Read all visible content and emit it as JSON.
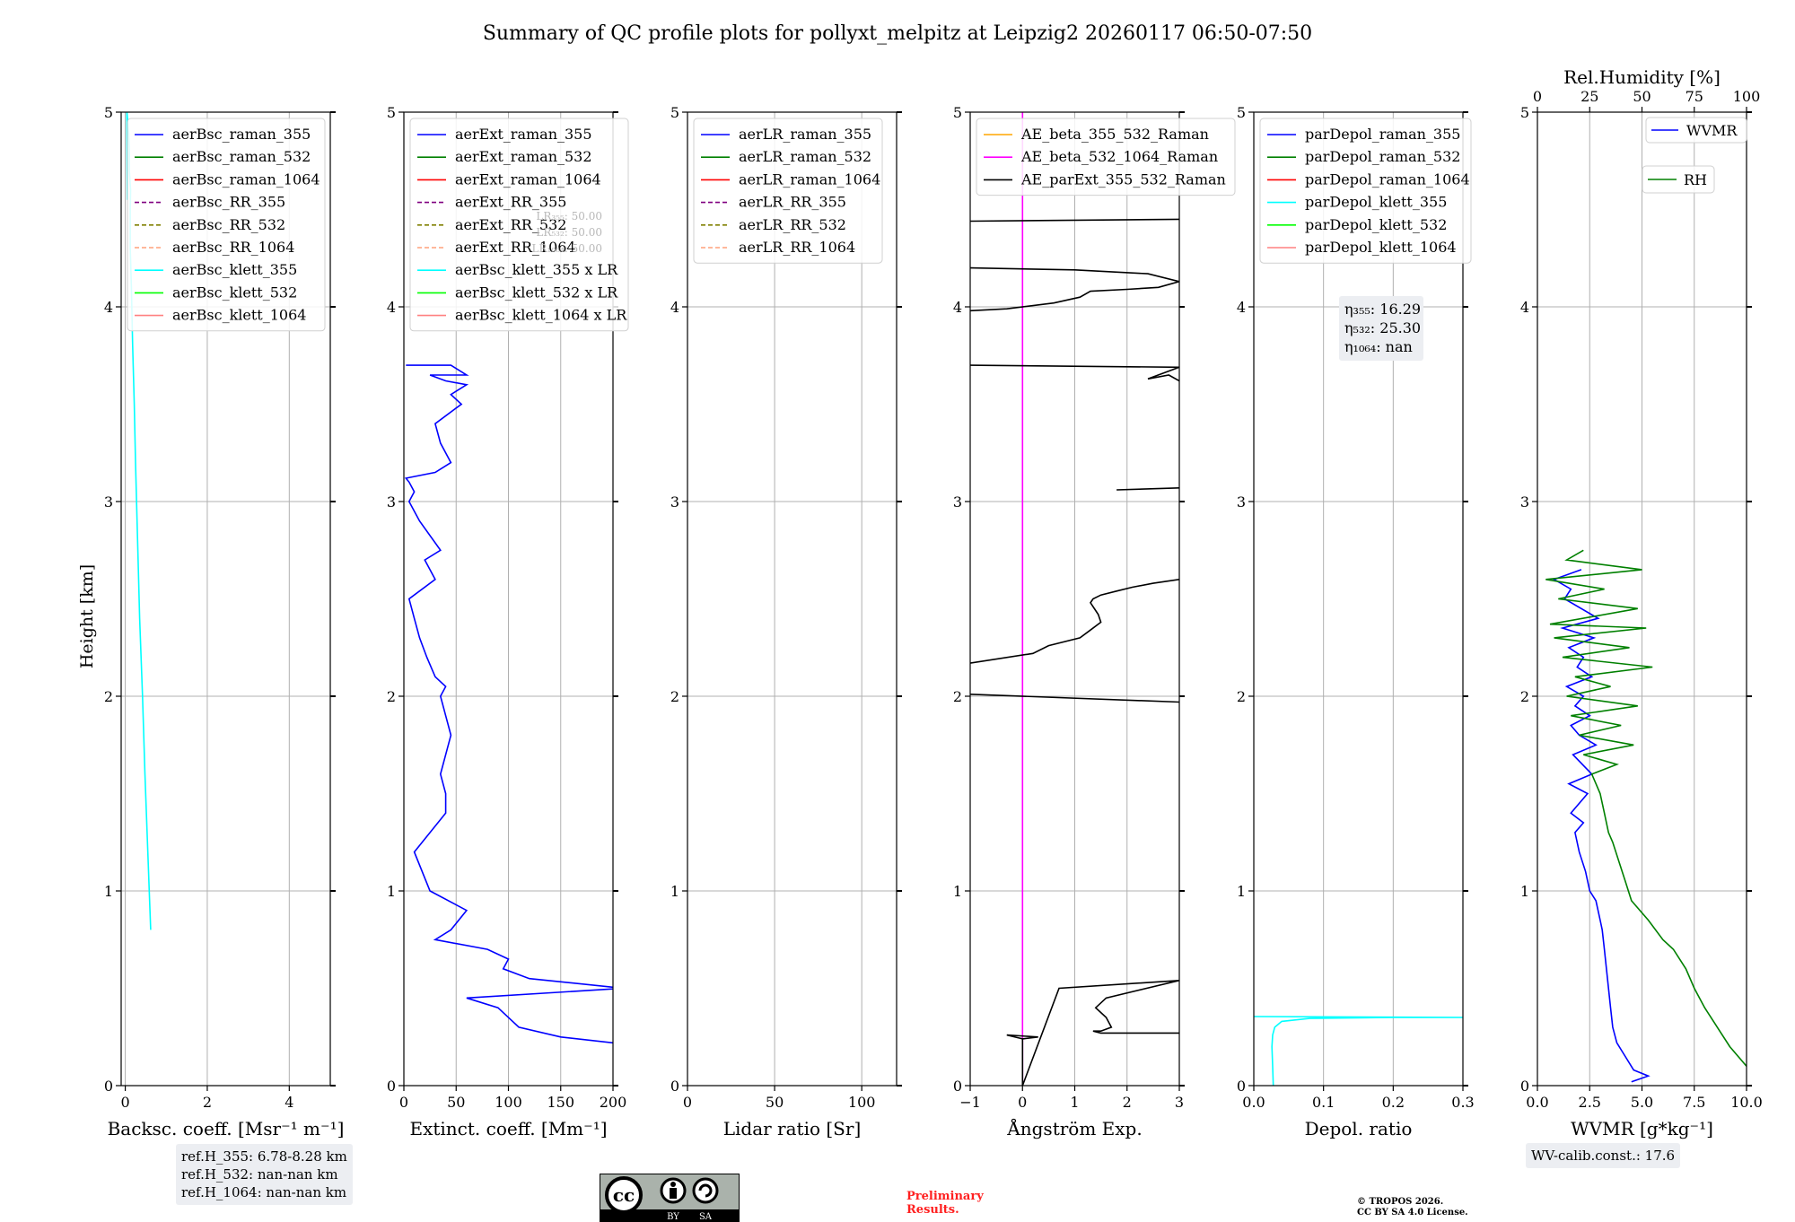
{
  "title": "Summary of QC profile plots for pollyxt_melpitz at Leipzig2 20260117 06:50-07:50",
  "ylabel": "Height [km]",
  "colors": {
    "c355": "#0000ff",
    "c532": "#008000",
    "c1064": "#ff0000",
    "rr355": "#800080",
    "rr532": "#808000",
    "rr1064": "#ffa07a",
    "k355": "#00ffff",
    "k532": "#00ff00",
    "k1064": "#ff8080",
    "ae1": "#ffa500",
    "ae2": "#ff00ff",
    "ae3": "#000000"
  },
  "chart_data": [
    {
      "id": "bsc",
      "type": "line",
      "xlabel": "Backsc. coeff. [Msr⁻¹ m⁻¹]",
      "xlim": [
        -0.1,
        5
      ],
      "ylim": [
        0,
        5
      ],
      "xticks": [
        "0",
        "2",
        "4"
      ],
      "xtick_values": [
        0,
        2,
        4
      ],
      "yticks": [
        "0",
        "1",
        "2",
        "3",
        "4",
        "5"
      ],
      "legend": [
        {
          "label": "aerBsc_raman_355",
          "color": "c355",
          "dash": false
        },
        {
          "label": "aerBsc_raman_532",
          "color": "c532",
          "dash": false
        },
        {
          "label": "aerBsc_raman_1064",
          "color": "c1064",
          "dash": false
        },
        {
          "label": "aerBsc_RR_355",
          "color": "rr355",
          "dash": true
        },
        {
          "label": "aerBsc_RR_532",
          "color": "rr532",
          "dash": true
        },
        {
          "label": "aerBsc_RR_1064",
          "color": "rr1064",
          "dash": true
        },
        {
          "label": "aerBsc_klett_355",
          "color": "k355",
          "dash": false
        },
        {
          "label": "aerBsc_klett_532",
          "color": "k532",
          "dash": false
        },
        {
          "label": "aerBsc_klett_1064",
          "color": "k1064",
          "dash": false
        }
      ],
      "series": [
        {
          "name": "aerBsc_klett_355",
          "color": "k355",
          "x": [
            0.62,
            0.55,
            0.48,
            0.42,
            0.35,
            0.3,
            0.25,
            0.22,
            0.18,
            0.15,
            0.12,
            0.12,
            0.13,
            0.1,
            0.1,
            0.08,
            0.06,
            0.04,
            0.05
          ],
          "y": [
            0.8,
            1.2,
            1.6,
            2.0,
            2.4,
            2.8,
            3.2,
            3.5,
            3.8,
            4.1,
            4.3,
            4.5,
            4.6,
            4.7,
            4.8,
            4.9,
            4.95,
            5.0,
            4.55
          ]
        }
      ]
    },
    {
      "id": "ext",
      "type": "line",
      "xlabel": "Extinct. coeff. [Mm⁻¹]",
      "xlim": [
        0,
        200
      ],
      "ylim": [
        0,
        5
      ],
      "xticks": [
        "0",
        "50",
        "100",
        "150",
        "200"
      ],
      "xtick_values": [
        0,
        50,
        100,
        150,
        200
      ],
      "yticks": [
        "0",
        "1",
        "2",
        "3",
        "4",
        "5"
      ],
      "legend": [
        {
          "label": "aerExt_raman_355",
          "color": "c355",
          "dash": false
        },
        {
          "label": "aerExt_raman_532",
          "color": "c532",
          "dash": false
        },
        {
          "label": "aerExt_raman_1064",
          "color": "c1064",
          "dash": false
        },
        {
          "label": "aerExt_RR_355",
          "color": "rr355",
          "dash": true
        },
        {
          "label": "aerExt_RR_532",
          "color": "rr532",
          "dash": true
        },
        {
          "label": "aerExt_RR_1064",
          "color": "rr1064",
          "dash": true
        },
        {
          "label": "aerBsc_klett_355 x LR",
          "color": "k355",
          "dash": false
        },
        {
          "label": "aerBsc_klett_532 x LR",
          "color": "k532",
          "dash": false
        },
        {
          "label": "aerBsc_klett_1064 x LR",
          "color": "k1064",
          "dash": false
        }
      ],
      "annotations": [
        "LR₃₅₅: 50.00",
        "LR₅₃₂: 50.00",
        "LR₁₀₆₄: 50.00"
      ],
      "series": [
        {
          "name": "aerExt_raman_355",
          "color": "c355",
          "x": [
            200,
            150,
            110,
            90,
            60,
            210,
            120,
            95,
            100,
            80,
            30,
            45,
            60,
            25,
            10,
            40,
            40,
            35,
            45,
            40,
            35,
            40,
            30,
            22,
            15,
            10,
            5,
            30,
            20,
            35,
            15,
            5,
            10,
            5,
            2,
            30,
            45,
            35,
            30,
            55,
            45,
            60,
            40,
            25,
            60,
            45,
            2
          ],
          "y": [
            0.22,
            0.25,
            0.3,
            0.4,
            0.45,
            0.5,
            0.55,
            0.6,
            0.65,
            0.7,
            0.75,
            0.8,
            0.9,
            1.0,
            1.2,
            1.4,
            1.5,
            1.6,
            1.8,
            1.9,
            2.0,
            2.05,
            2.1,
            2.2,
            2.3,
            2.4,
            2.5,
            2.6,
            2.7,
            2.75,
            2.9,
            3.0,
            3.05,
            3.1,
            3.12,
            3.15,
            3.2,
            3.3,
            3.4,
            3.5,
            3.55,
            3.6,
            3.62,
            3.65,
            3.65,
            3.7,
            3.7
          ]
        }
      ]
    },
    {
      "id": "lr",
      "type": "line",
      "xlabel": "Lidar ratio [Sr]",
      "xlim": [
        0,
        120
      ],
      "ylim": [
        0,
        5
      ],
      "xticks": [
        "0",
        "50",
        "100"
      ],
      "xtick_values": [
        0,
        50,
        100
      ],
      "yticks": [
        "0",
        "1",
        "2",
        "3",
        "4",
        "5"
      ],
      "legend": [
        {
          "label": "aerLR_raman_355",
          "color": "c355",
          "dash": false
        },
        {
          "label": "aerLR_raman_532",
          "color": "c532",
          "dash": false
        },
        {
          "label": "aerLR_raman_1064",
          "color": "c1064",
          "dash": false
        },
        {
          "label": "aerLR_RR_355",
          "color": "rr355",
          "dash": true
        },
        {
          "label": "aerLR_RR_532",
          "color": "rr532",
          "dash": true
        },
        {
          "label": "aerLR_RR_1064",
          "color": "rr1064",
          "dash": true
        }
      ],
      "series": []
    },
    {
      "id": "ae",
      "type": "line",
      "xlabel": "Ångström Exp.",
      "xlim": [
        -1,
        3
      ],
      "ylim": [
        0,
        5
      ],
      "xticks": [
        "−1",
        "0",
        "1",
        "2",
        "3"
      ],
      "xtick_values": [
        -1,
        0,
        1,
        2,
        3
      ],
      "yticks": [
        "0",
        "1",
        "2",
        "3",
        "4",
        "5"
      ],
      "legend": [
        {
          "label": "AE_beta_355_532_Raman",
          "color": "ae1",
          "dash": false
        },
        {
          "label": "AE_beta_532_1064_Raman",
          "color": "ae2",
          "dash": false
        },
        {
          "label": "AE_parExt_355_532_Raman",
          "color": "ae3",
          "dash": false
        }
      ],
      "series": [
        {
          "name": "AE_beta_532_1064_Raman",
          "color": "ae2",
          "x": [
            0,
            0
          ],
          "y": [
            0,
            5
          ]
        },
        {
          "name": "AE_parExt_355_532_Raman",
          "color": "ae3",
          "x": [
            0,
            0,
            -0.3,
            0.3,
            0,
            0,
            0.7,
            3.0,
            1.6,
            1.4,
            1.6,
            1.7,
            1.5,
            1.35,
            1.5,
            3.0
          ],
          "y": [
            0,
            0.24,
            0.26,
            0.25,
            0.24,
            0,
            0.5,
            0.54,
            0.45,
            0.4,
            0.35,
            0.3,
            0.28,
            0.28,
            0.27,
            0.27
          ]
        },
        {
          "name": "AE_parExt_355_532_Raman",
          "color": "ae3",
          "x": [
            -1,
            0.2,
            0.5,
            1.1,
            1.3,
            1.5,
            1.45,
            1.4,
            1.3,
            1.35,
            1.5,
            1.8,
            2.1,
            2.5,
            3.0
          ],
          "y": [
            2.17,
            2.22,
            2.26,
            2.3,
            2.34,
            2.38,
            2.42,
            2.44,
            2.48,
            2.5,
            2.52,
            2.54,
            2.56,
            2.58,
            2.6
          ]
        },
        {
          "name": "AE_parExt_355_532_Raman",
          "color": "ae3",
          "x": [
            -1,
            3
          ],
          "y": [
            2.01,
            1.97
          ]
        },
        {
          "name": "AE_parExt_355_532_Raman",
          "color": "ae3",
          "x": [
            1.8,
            3
          ],
          "y": [
            3.06,
            3.07
          ]
        },
        {
          "name": "AE_parExt_355_532_Raman",
          "color": "ae3",
          "x": [
            -1,
            3,
            2.4,
            2.8,
            3.0
          ],
          "y": [
            3.7,
            3.69,
            3.63,
            3.65,
            3.62
          ]
        },
        {
          "name": "AE_parExt_355_532_Raman",
          "color": "ae3",
          "x": [
            -1,
            -0.3,
            0.6,
            1.1,
            1.3,
            2.0,
            2.6,
            3.0,
            2.4,
            1.0,
            -1
          ],
          "y": [
            3.98,
            3.99,
            4.02,
            4.05,
            4.08,
            4.09,
            4.1,
            4.13,
            4.17,
            4.19,
            4.2
          ]
        },
        {
          "name": "AE_parExt_355_532_Raman",
          "color": "ae3",
          "x": [
            -1,
            3
          ],
          "y": [
            4.44,
            4.45
          ]
        }
      ]
    },
    {
      "id": "depol",
      "type": "line",
      "xlabel": "Depol. ratio",
      "xlim": [
        0,
        0.3
      ],
      "ylim": [
        0,
        5
      ],
      "xticks": [
        "0.0",
        "0.1",
        "0.2",
        "0.3"
      ],
      "xtick_values": [
        0,
        0.1,
        0.2,
        0.3
      ],
      "yticks": [
        "0",
        "1",
        "2",
        "3",
        "4",
        "5"
      ],
      "legend": [
        {
          "label": "parDepol_raman_355",
          "color": "c355",
          "dash": false
        },
        {
          "label": "parDepol_raman_532",
          "color": "c532",
          "dash": false
        },
        {
          "label": "parDepol_raman_1064",
          "color": "c1064",
          "dash": false
        },
        {
          "label": "parDepol_klett_355",
          "color": "k355",
          "dash": false
        },
        {
          "label": "parDepol_klett_532",
          "color": "k532",
          "dash": false
        },
        {
          "label": "parDepol_klett_1064",
          "color": "k1064",
          "dash": false
        }
      ],
      "eta": [
        "η₃₅₅: 16.29",
        "η₅₃₂: 25.30",
        "η₁₀₆₄: nan"
      ],
      "series": [
        {
          "name": "parDepol_klett_355",
          "color": "k355",
          "x": [
            0.028,
            0.027,
            0.026,
            0.027,
            0.03,
            0.04,
            0.08,
            0.2,
            0.3,
            0.0
          ],
          "y": [
            0.0,
            0.1,
            0.2,
            0.26,
            0.3,
            0.33,
            0.345,
            0.35,
            0.35,
            0.355
          ]
        }
      ]
    },
    {
      "id": "wv",
      "type": "line",
      "xlabel": "WVMR [g*kg⁻¹]",
      "xlim": [
        0,
        10
      ],
      "ylim": [
        0,
        5
      ],
      "xticks": [
        "0.0",
        "2.5",
        "5.0",
        "7.5",
        "10.0"
      ],
      "xtick_values": [
        0,
        2.5,
        5,
        7.5,
        10
      ],
      "yticks": [
        "0",
        "1",
        "2",
        "3",
        "4",
        "5"
      ],
      "top_xlabel": "Rel.Humidity [%]",
      "top_xticks": [
        "0",
        "25",
        "50",
        "75",
        "100"
      ],
      "top_xtick_values": [
        0,
        25,
        50,
        75,
        100
      ],
      "legend_wvmr": "WVMR",
      "legend_rh": "RH",
      "series": [
        {
          "name": "WVMR",
          "color": "c355",
          "x": [
            4.5,
            5.3,
            4.6,
            4.2,
            3.8,
            3.6,
            3.5,
            3.4,
            3.3,
            3.2,
            3.1,
            3.0,
            2.8,
            2.5,
            2.3,
            2.0,
            1.8,
            2.2,
            1.6,
            2.4,
            1.5,
            2.6,
            1.7,
            2.8,
            2.0,
            1.6,
            2.5,
            1.8,
            2.2,
            1.4,
            2.6,
            1.9,
            2.2,
            1.5,
            2.7,
            1.2,
            2.9,
            1.3,
            1.6,
            0.8,
            2.1
          ],
          "y": [
            0.02,
            0.05,
            0.08,
            0.15,
            0.22,
            0.3,
            0.4,
            0.5,
            0.6,
            0.7,
            0.8,
            0.85,
            0.95,
            1.0,
            1.1,
            1.2,
            1.3,
            1.35,
            1.4,
            1.5,
            1.55,
            1.6,
            1.7,
            1.75,
            1.8,
            1.85,
            1.9,
            1.95,
            2.0,
            2.05,
            2.1,
            2.15,
            2.2,
            2.25,
            2.3,
            2.35,
            2.4,
            2.5,
            2.55,
            2.6,
            2.65
          ]
        },
        {
          "name": "RH",
          "color": "c532",
          "x": [
            10,
            9.2,
            8.6,
            8.0,
            7.5,
            7.1,
            6.5,
            6.0,
            5.3,
            4.5,
            4.2,
            3.9,
            3.6,
            3.4,
            3.2,
            3.0,
            2.6,
            3.8,
            2.2,
            4.6,
            2.0,
            4.0,
            1.6,
            4.8,
            1.4,
            3.5,
            1.8,
            5.5,
            1.2,
            4.4,
            0.8,
            5.2,
            0.6,
            4.8,
            1.0,
            3.2,
            0.4,
            5.0,
            1.4,
            2.2
          ],
          "y": [
            0.1,
            0.2,
            0.3,
            0.4,
            0.5,
            0.6,
            0.7,
            0.75,
            0.85,
            0.95,
            1.05,
            1.15,
            1.25,
            1.3,
            1.4,
            1.5,
            1.6,
            1.65,
            1.7,
            1.75,
            1.8,
            1.85,
            1.9,
            1.95,
            2.0,
            2.05,
            2.1,
            2.15,
            2.2,
            2.25,
            2.3,
            2.35,
            2.37,
            2.45,
            2.5,
            2.55,
            2.6,
            2.65,
            2.7,
            2.75
          ]
        }
      ]
    }
  ],
  "ref_heights": [
    "ref.H_355: 6.78-8.28 km",
    "ref.H_532: nan-nan km",
    "ref.H_1064: nan-nan km"
  ],
  "wv_calib": "WV-calib.const.: 17.6",
  "preliminary": [
    "Preliminary",
    "Results."
  ],
  "copyright": [
    "© TROPOS 2026.",
    "CC BY SA 4.0 License."
  ],
  "license_badge": [
    "BY",
    "SA"
  ]
}
